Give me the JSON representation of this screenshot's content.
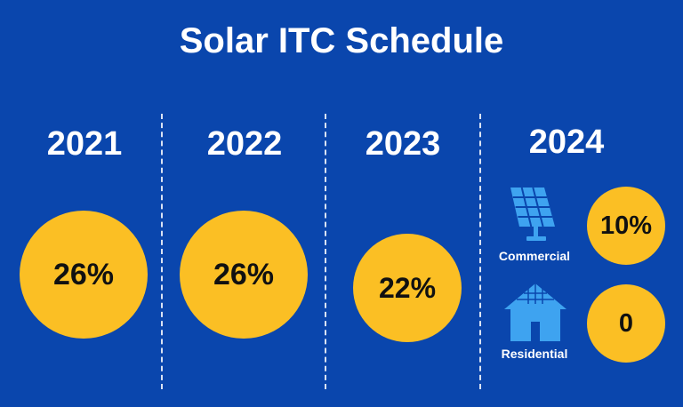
{
  "title": "Solar ITC Schedule",
  "colors": {
    "background": "#0a46ad",
    "circle": "#fbbf24",
    "icon": "#3ea3f0"
  },
  "columns": [
    {
      "year": "2021",
      "value": "26%"
    },
    {
      "year": "2022",
      "value": "26%"
    },
    {
      "year": "2023",
      "value": "22%"
    },
    {
      "year": "2024",
      "commercial": {
        "label": "Commercial",
        "value": "10%",
        "icon": "solar-panel-icon"
      },
      "residential": {
        "label": "Residential",
        "value": "0",
        "icon": "house-icon"
      }
    }
  ]
}
